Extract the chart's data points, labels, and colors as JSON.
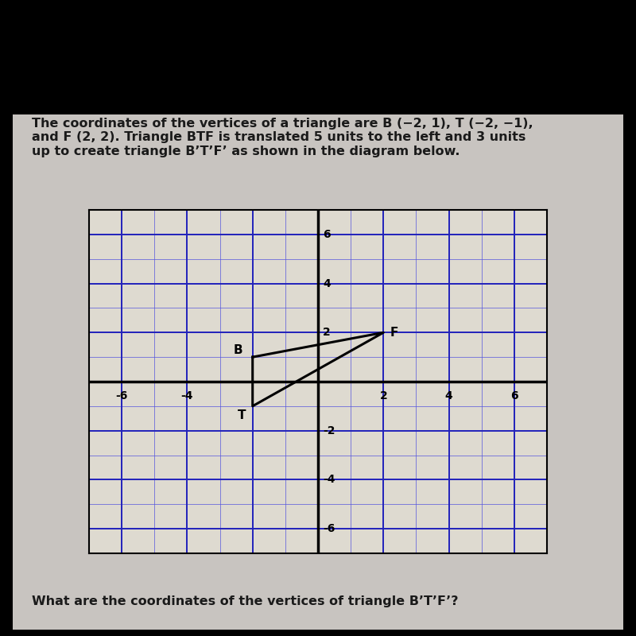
{
  "background_color": "#000000",
  "card_color": "#c8c4c0",
  "text_color": "#1a1a1a",
  "title_text": "The coordinates of the vertices of a triangle are B (−2, 1), T (−2, −1),\nand F (2, 2). Triangle BTF is translated 5 units to the left and 3 units\nup to create triangle B’T’F’ as shown in the diagram below.",
  "question_text": "What are the coordinates of the vertices of triangle B’T’F’?",
  "grid_minor_color": "#5555dd",
  "grid_major_color": "#2222bb",
  "grid_bg_color": "#dedad0",
  "axis_color": "#000000",
  "triangle_color": "#000000",
  "label_color": "#000000",
  "B": [
    -2,
    1
  ],
  "T": [
    -2,
    -1
  ],
  "F": [
    2,
    2
  ],
  "label_B": "B",
  "label_T": "T",
  "label_F": "F",
  "fig_width": 8.0,
  "fig_height": 8.0,
  "title_fontsize": 11.5,
  "label_fontsize": 11,
  "tick_fontsize": 10
}
